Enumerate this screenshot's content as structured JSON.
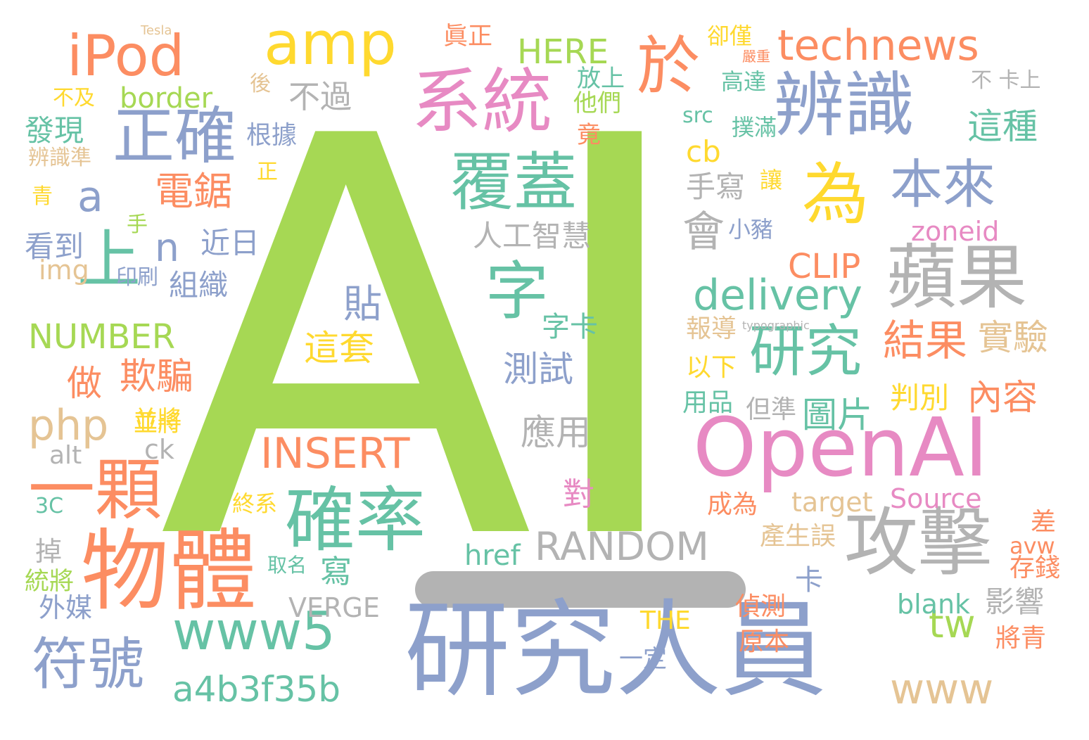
{
  "colors": {
    "background": "#ffffff",
    "green": "#a6d854",
    "teal": "#66c2a5",
    "orange": "#fc8d62",
    "blue": "#8da0cb",
    "pink": "#e78ac3",
    "yellow": "#ffd92f",
    "tan": "#e5c494",
    "gray": "#b3b3b3"
  },
  "words": [
    "AI",
    "研究人員",
    "物體",
    "OpenAI",
    "攻擊",
    "蘋果",
    "辨識",
    "系統",
    "確率",
    "一顆",
    "覆蓋",
    "為",
    "字",
    "正確",
    "研究",
    "www5",
    "符號",
    "amp",
    "iPod",
    "於",
    "technews",
    "本來",
    "上",
    "a4b3f35b",
    "delivery",
    "RANDOM",
    "www",
    "INSERT",
    "php",
    "結果",
    "這種",
    "實驗",
    "會",
    "電鋸",
    "欺騙",
    "圖片",
    "內容",
    "測試",
    "應用",
    "不過",
    "人工智慧",
    "這套",
    "貼",
    "字卡",
    "NUMBER",
    "HERE",
    "tw",
    "CLIP",
    "a",
    "n",
    "做",
    "組織",
    "近日",
    "看到",
    "發現",
    "手寫",
    "判別",
    "影響",
    "寫",
    "Source",
    "target",
    "zoneid",
    "cb",
    "img",
    "alt",
    "ck",
    "border",
    "VERGE",
    "href",
    "blank",
    "對",
    "卡",
    "外媒",
    "掉",
    "統將",
    "成為",
    "產生誤",
    "偵測",
    "原本",
    "差",
    "存錢",
    "將青",
    "avw",
    "src",
    "撲滿",
    "高達",
    "讓",
    "小豬",
    "用品",
    "但準",
    "以下",
    "報導",
    "放上",
    "他們",
    "竟",
    "根據",
    "印刷",
    "3C",
    "眞正",
    "後",
    "不及",
    "辨識準",
    "青",
    "正",
    "手",
    "不 卡上",
    "卻僅",
    "嚴重",
    "終系",
    "取名",
    "一定",
    "typographic",
    "Tesla",
    "並將",
    "THE",
    "並將"
  ]
}
